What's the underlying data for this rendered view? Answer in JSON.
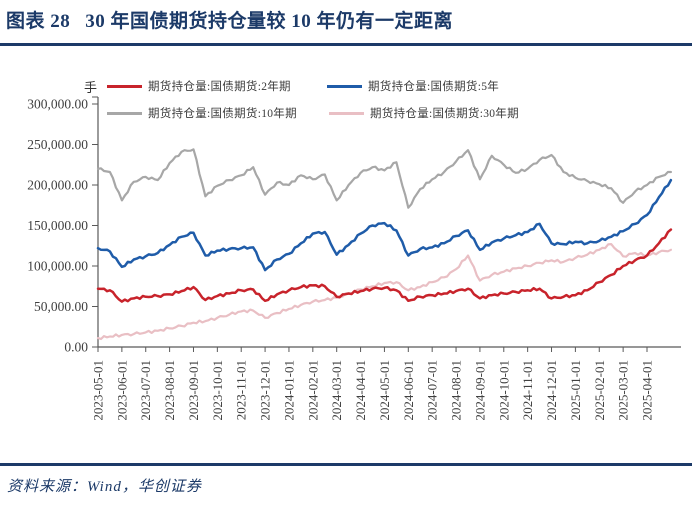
{
  "title": {
    "figure_label": "图表 28",
    "text": "30 年国债期货持仓量较 10 年仍有一定距离"
  },
  "source": {
    "text": "资料来源：Wind，华创证券"
  },
  "colors": {
    "accent_navy": "#1c3a68",
    "axis_text": "#404040",
    "axis_line": "#595959"
  },
  "chart_data": {
    "type": "line",
    "title": "",
    "unit": "手",
    "xlabel": "",
    "ylabel": "",
    "ylim": [
      0,
      300000
    ],
    "grid": false,
    "legend_position": "top",
    "y_tick_labels": [
      "0.00",
      "50,000.00",
      "100,000.00",
      "150,000.00",
      "200,000.00",
      "250,000.00",
      "300,000.00"
    ],
    "x_labels": [
      "2023-05-01",
      "2023-06-01",
      "2023-07-01",
      "2023-08-01",
      "2023-09-01",
      "2023-10-01",
      "2023-11-01",
      "2023-12-01",
      "2024-01-01",
      "2024-02-01",
      "2024-03-01",
      "2024-04-01",
      "2024-05-01",
      "2024-06-01",
      "2024-07-01",
      "2024-08-01",
      "2024-09-01",
      "2024-10-01",
      "2024-11-01",
      "2024-12-01",
      "2025-01-01",
      "2025-02-01",
      "2025-03-01",
      "2025-04-01"
    ],
    "points_per_month": 2,
    "series": [
      {
        "id": "2y",
        "name": "期货持仓量:国债期货:2年期",
        "color": "#c8232b",
        "values": [
          72000,
          70000,
          56000,
          60000,
          62000,
          63000,
          65000,
          69000,
          74000,
          58000,
          63000,
          66000,
          70000,
          71000,
          57000,
          65000,
          70000,
          74000,
          76000,
          75000,
          62000,
          66000,
          69000,
          72000,
          73000,
          70000,
          57000,
          62000,
          64000,
          66000,
          69000,
          72000,
          60000,
          64000,
          66000,
          68000,
          70000,
          72000,
          60000,
          62000,
          64000,
          70000,
          80000,
          89000,
          100000,
          107000,
          113000,
          128000,
          145000
        ]
      },
      {
        "id": "5y",
        "name": "期货持仓量:国债期货:5年",
        "color": "#1f5ca9",
        "values": [
          122000,
          118000,
          99000,
          108000,
          112000,
          116000,
          126000,
          136000,
          141000,
          113000,
          119000,
          121000,
          122000,
          123000,
          95000,
          108000,
          115000,
          128000,
          140000,
          142000,
          114000,
          126000,
          140000,
          150000,
          153000,
          144000,
          113000,
          121000,
          123000,
          128000,
          137000,
          144000,
          120000,
          129000,
          134000,
          138000,
          142000,
          152000,
          128000,
          127000,
          130000,
          128000,
          131000,
          136000,
          143000,
          152000,
          163000,
          185000,
          206000
        ]
      },
      {
        "id": "10y",
        "name": "期货持仓量:国债期货:10年期",
        "color": "#a7a7a7",
        "values": [
          220000,
          216000,
          181000,
          204000,
          210000,
          206000,
          227000,
          241000,
          244000,
          186000,
          199000,
          206000,
          212000,
          222000,
          188000,
          203000,
          200000,
          212000,
          207000,
          213000,
          181000,
          200000,
          215000,
          222000,
          218000,
          228000,
          172000,
          195000,
          207000,
          216000,
          229000,
          243000,
          207000,
          236000,
          225000,
          215000,
          220000,
          231000,
          237000,
          216000,
          209000,
          205000,
          201000,
          196000,
          178000,
          192000,
          200000,
          210000,
          216000
        ]
      },
      {
        "id": "30y",
        "name": "期货持仓量:国债期货:30年期",
        "color": "#e9bfc4",
        "values": [
          11000,
          13000,
          15000,
          16000,
          18000,
          20000,
          23000,
          26000,
          30000,
          32000,
          36000,
          40000,
          44000,
          45000,
          36000,
          42000,
          47000,
          52000,
          56000,
          58000,
          61000,
          66000,
          71000,
          75000,
          79000,
          80000,
          70000,
          74000,
          80000,
          86000,
          96000,
          113000,
          82000,
          89000,
          93000,
          97000,
          100000,
          104000,
          107000,
          105000,
          110000,
          114000,
          120000,
          127000,
          112000,
          116000,
          113000,
          117000,
          120000
        ]
      }
    ]
  }
}
